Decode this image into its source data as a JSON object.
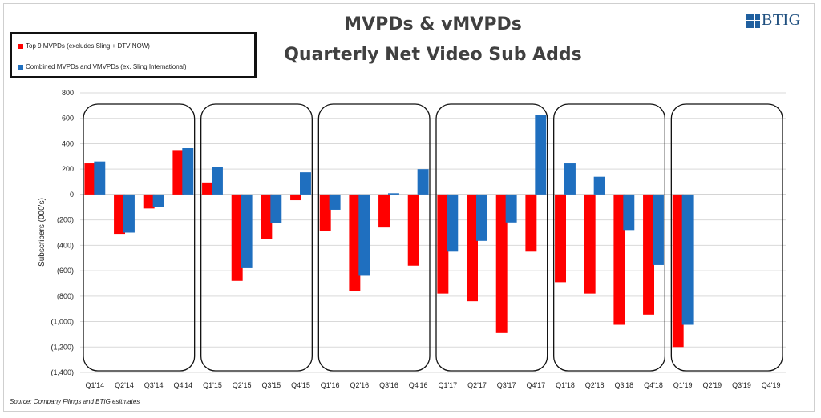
{
  "chart_data": {
    "type": "bar",
    "title": "MVPDs & vMVPDs",
    "subtitle": "Quarterly Net Video Sub Adds",
    "xlabel": "",
    "ylabel": "Subscribers (000's)",
    "ylim": [
      -1400,
      800
    ],
    "yticks": [
      800,
      600,
      400,
      200,
      0,
      -200,
      -400,
      -600,
      -800,
      -1000,
      -1200,
      -1400
    ],
    "ytick_labels": [
      "800",
      "600",
      "400",
      "200",
      "0",
      "(200)",
      "(400)",
      "(600)",
      "(800)",
      "(1,000)",
      "(1,200)",
      "(1,400)"
    ],
    "grid": true,
    "legend_position": "top-left",
    "categories": [
      "Q1'14",
      "Q2'14",
      "Q3'14",
      "Q4'14",
      "Q1'15",
      "Q2'15",
      "Q3'15",
      "Q4'15",
      "Q1'16",
      "Q2'16",
      "Q3'16",
      "Q4'16",
      "Q1'17",
      "Q2'17",
      "Q3'17",
      "Q4'17",
      "Q1'18",
      "Q2'18",
      "Q3'18",
      "Q4'18",
      "Q1'19",
      "Q2'19",
      "Q3'19",
      "Q4'19"
    ],
    "series": [
      {
        "name": "Top 9 MVPDs (excludes Sling + DTV NOW)",
        "color": "#ff0000",
        "values": [
          245,
          -310,
          -110,
          350,
          95,
          -680,
          -350,
          -45,
          -290,
          -760,
          -260,
          -560,
          -780,
          -840,
          -1090,
          -450,
          -690,
          -780,
          -1025,
          -945,
          -1200,
          null,
          null,
          null
        ]
      },
      {
        "name": "Combined MVPDs and VMVPDs (ex. Sling International)",
        "color": "#1f6fbf",
        "values": [
          260,
          -300,
          -100,
          365,
          220,
          -580,
          -225,
          175,
          -120,
          -640,
          10,
          200,
          -450,
          -365,
          -220,
          625,
          245,
          140,
          -280,
          -555,
          -1025,
          null,
          null,
          null
        ]
      }
    ],
    "year_groups": [
      {
        "label": "2014",
        "start": 0,
        "end": 3
      },
      {
        "label": "2015",
        "start": 4,
        "end": 7
      },
      {
        "label": "2016",
        "start": 8,
        "end": 11
      },
      {
        "label": "2017",
        "start": 12,
        "end": 15
      },
      {
        "label": "2018",
        "start": 16,
        "end": 19
      },
      {
        "label": "2019",
        "start": 20,
        "end": 23
      }
    ]
  },
  "logo_text": "BTIG",
  "source_note": "Source: Company Filings and BTIG esitmates"
}
